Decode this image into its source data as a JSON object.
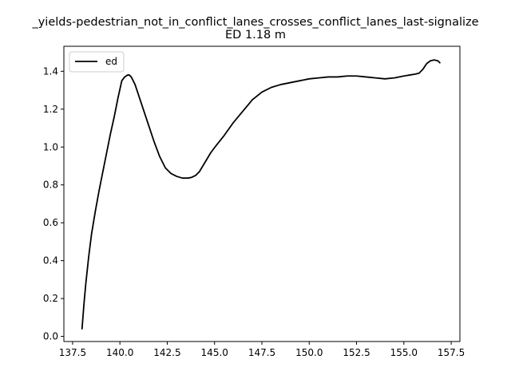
{
  "chart_data": {
    "type": "line",
    "title": "_yields-pedestrian_not_in_conflict_lanes_crosses_conflict_lanes_last-signalize",
    "subtitle": "ED 1.18 m",
    "xlabel": "",
    "ylabel": "",
    "xlim": [
      137.04,
      157.96
    ],
    "ylim": [
      -0.027,
      1.532
    ],
    "x_ticks": [
      137.5,
      140.0,
      142.5,
      145.0,
      147.5,
      150.0,
      152.5,
      155.0,
      157.5
    ],
    "x_tick_labels": [
      "137.5",
      "140.0",
      "142.5",
      "145.0",
      "147.5",
      "150.0",
      "152.5",
      "155.0",
      "157.5"
    ],
    "y_ticks": [
      0.0,
      0.2,
      0.4,
      0.6,
      0.8,
      1.0,
      1.2,
      1.4
    ],
    "y_tick_labels": [
      "0.0",
      "0.2",
      "0.4",
      "0.6",
      "0.8",
      "1.0",
      "1.2",
      "1.4"
    ],
    "grid": false,
    "legend_position": "top-left",
    "series": [
      {
        "name": "ed",
        "color": "#000000",
        "x": [
          138.0,
          138.1,
          138.2,
          138.35,
          138.5,
          138.7,
          138.9,
          139.1,
          139.3,
          139.5,
          139.7,
          139.9,
          140.1,
          140.25,
          140.4,
          140.5,
          140.6,
          140.8,
          141.0,
          141.2,
          141.5,
          141.8,
          142.1,
          142.4,
          142.7,
          143.0,
          143.3,
          143.6,
          143.8,
          144.0,
          144.2,
          144.5,
          144.8,
          145.1,
          145.5,
          146.0,
          146.5,
          147.0,
          147.5,
          148.0,
          148.5,
          149.0,
          149.5,
          150.0,
          150.5,
          151.0,
          151.5,
          152.0,
          152.5,
          153.0,
          153.5,
          154.0,
          154.5,
          155.0,
          155.3,
          155.6,
          155.8,
          156.0,
          156.2,
          156.4,
          156.6,
          156.8,
          156.9
        ],
        "y": [
          0.04,
          0.17,
          0.28,
          0.42,
          0.54,
          0.66,
          0.77,
          0.87,
          0.97,
          1.07,
          1.16,
          1.26,
          1.35,
          1.37,
          1.38,
          1.38,
          1.37,
          1.33,
          1.27,
          1.21,
          1.12,
          1.03,
          0.95,
          0.89,
          0.86,
          0.845,
          0.836,
          0.836,
          0.84,
          0.85,
          0.87,
          0.92,
          0.97,
          1.01,
          1.06,
          1.13,
          1.19,
          1.25,
          1.29,
          1.315,
          1.33,
          1.34,
          1.35,
          1.36,
          1.365,
          1.37,
          1.37,
          1.375,
          1.375,
          1.37,
          1.365,
          1.36,
          1.365,
          1.375,
          1.38,
          1.385,
          1.39,
          1.41,
          1.44,
          1.455,
          1.46,
          1.455,
          1.445
        ]
      }
    ]
  }
}
